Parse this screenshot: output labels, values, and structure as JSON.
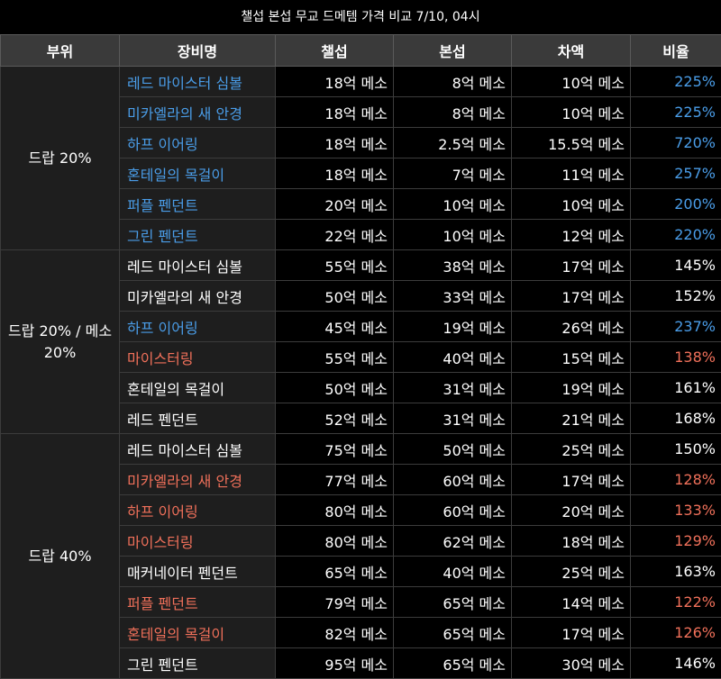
{
  "title": "챌섭 본섭 무교 드메템 가격 비교 7/10, 04시",
  "headers": [
    "부위",
    "장비명",
    "챌섭",
    "본섭",
    "차액",
    "비율"
  ],
  "colors": {
    "blue": "#4a9de8",
    "red": "#f0705a",
    "white": "#ffffff"
  },
  "groups": [
    {
      "label": "드랍 20%",
      "rows": [
        {
          "name": "레드 마이스터 심볼",
          "chal": "18억 메소",
          "bon": "8억 메소",
          "diff": "10억 메소",
          "ratio": "225%",
          "color": "blue"
        },
        {
          "name": "미카엘라의 새 안경",
          "chal": "18억 메소",
          "bon": "8억 메소",
          "diff": "10억 메소",
          "ratio": "225%",
          "color": "blue"
        },
        {
          "name": "하프 이어링",
          "chal": "18억 메소",
          "bon": "2.5억 메소",
          "diff": "15.5억 메소",
          "ratio": "720%",
          "color": "blue"
        },
        {
          "name": "혼테일의 목걸이",
          "chal": "18억 메소",
          "bon": "7억 메소",
          "diff": "11억 메소",
          "ratio": "257%",
          "color": "blue"
        },
        {
          "name": "퍼플 펜던트",
          "chal": "20억 메소",
          "bon": "10억 메소",
          "diff": "10억 메소",
          "ratio": "200%",
          "color": "blue"
        },
        {
          "name": "그린 펜던트",
          "chal": "22억 메소",
          "bon": "10억 메소",
          "diff": "12억 메소",
          "ratio": "220%",
          "color": "blue"
        }
      ]
    },
    {
      "label": "드랍 20% / 메소 20%",
      "rows": [
        {
          "name": "레드 마이스터 심볼",
          "chal": "55억 메소",
          "bon": "38억 메소",
          "diff": "17억 메소",
          "ratio": "145%",
          "color": "white"
        },
        {
          "name": "미카엘라의 새 안경",
          "chal": "50억 메소",
          "bon": "33억 메소",
          "diff": "17억 메소",
          "ratio": "152%",
          "color": "white"
        },
        {
          "name": "하프 이어링",
          "chal": "45억 메소",
          "bon": "19억 메소",
          "diff": "26억 메소",
          "ratio": "237%",
          "color": "blue"
        },
        {
          "name": "마이스터링",
          "chal": "55억 메소",
          "bon": "40억 메소",
          "diff": "15억 메소",
          "ratio": "138%",
          "color": "red"
        },
        {
          "name": "혼테일의 목걸이",
          "chal": "50억 메소",
          "bon": "31억 메소",
          "diff": "19억 메소",
          "ratio": "161%",
          "color": "white"
        },
        {
          "name": "레드 펜던트",
          "chal": "52억 메소",
          "bon": "31억 메소",
          "diff": "21억 메소",
          "ratio": "168%",
          "color": "white"
        }
      ]
    },
    {
      "label": "드랍 40%",
      "rows": [
        {
          "name": "레드 마이스터 심볼",
          "chal": "75억 메소",
          "bon": "50억 메소",
          "diff": "25억 메소",
          "ratio": "150%",
          "color": "white"
        },
        {
          "name": "미카엘라의 새 안경",
          "chal": "77억 메소",
          "bon": "60억 메소",
          "diff": "17억 메소",
          "ratio": "128%",
          "color": "red"
        },
        {
          "name": "하프 이어링",
          "chal": "80억 메소",
          "bon": "60억 메소",
          "diff": "20억 메소",
          "ratio": "133%",
          "color": "red"
        },
        {
          "name": "마이스터링",
          "chal": "80억 메소",
          "bon": "62억 메소",
          "diff": "18억 메소",
          "ratio": "129%",
          "color": "red"
        },
        {
          "name": "매커네이터 펜던트",
          "chal": "65억 메소",
          "bon": "40억 메소",
          "diff": "25억 메소",
          "ratio": "163%",
          "color": "white"
        },
        {
          "name": "퍼플 펜던트",
          "chal": "79억 메소",
          "bon": "65억 메소",
          "diff": "14억 메소",
          "ratio": "122%",
          "color": "red"
        },
        {
          "name": "혼테일의 목걸이",
          "chal": "82억 메소",
          "bon": "65억 메소",
          "diff": "17억 메소",
          "ratio": "126%",
          "color": "red"
        },
        {
          "name": "그린 펜던트",
          "chal": "95억 메소",
          "bon": "65억 메소",
          "diff": "30억 메소",
          "ratio": "146%",
          "color": "white"
        }
      ]
    }
  ]
}
